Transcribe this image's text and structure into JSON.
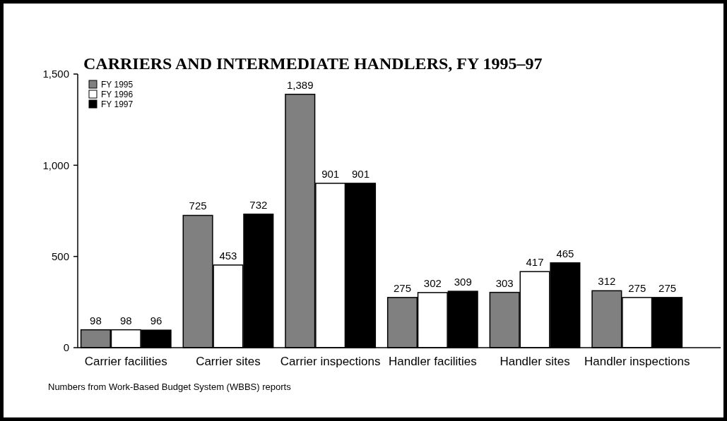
{
  "chart_data": {
    "type": "bar",
    "title": "CARRIERS AND INTERMEDIATE HANDLERS, FY 1995–97",
    "categories": [
      "Carrier facilities",
      "Carrier sites",
      "Carrier inspections",
      "Handler facilities",
      "Handler sites",
      "Handler inspections"
    ],
    "series": [
      {
        "name": "FY 1995",
        "color": "#808080",
        "values": [
          98,
          725,
          1389,
          275,
          303,
          312
        ],
        "value_labels": [
          "98",
          "725",
          "1,389",
          "275",
          "303",
          "312"
        ]
      },
      {
        "name": "FY 1996",
        "color": "#ffffff",
        "values": [
          98,
          453,
          901,
          302,
          417,
          275
        ],
        "value_labels": [
          "98",
          "453",
          "901",
          "302",
          "417",
          "275"
        ]
      },
      {
        "name": "FY 1997",
        "color": "#000000",
        "values": [
          96,
          732,
          901,
          309,
          465,
          275
        ],
        "value_labels": [
          "96",
          "732",
          "901",
          "309",
          "465",
          "275"
        ]
      }
    ],
    "ylim": [
      0,
      1500
    ],
    "yticks": [
      0,
      {
        "value": 500,
        "label": "500"
      },
      {
        "value": 1000,
        "label": "1,000"
      },
      {
        "value": 1500,
        "label": "1,500"
      }
    ],
    "legend": "top left",
    "grid": false,
    "annotations": [
      "Numbers from Work-Based Budget System (WBBS) reports"
    ]
  }
}
